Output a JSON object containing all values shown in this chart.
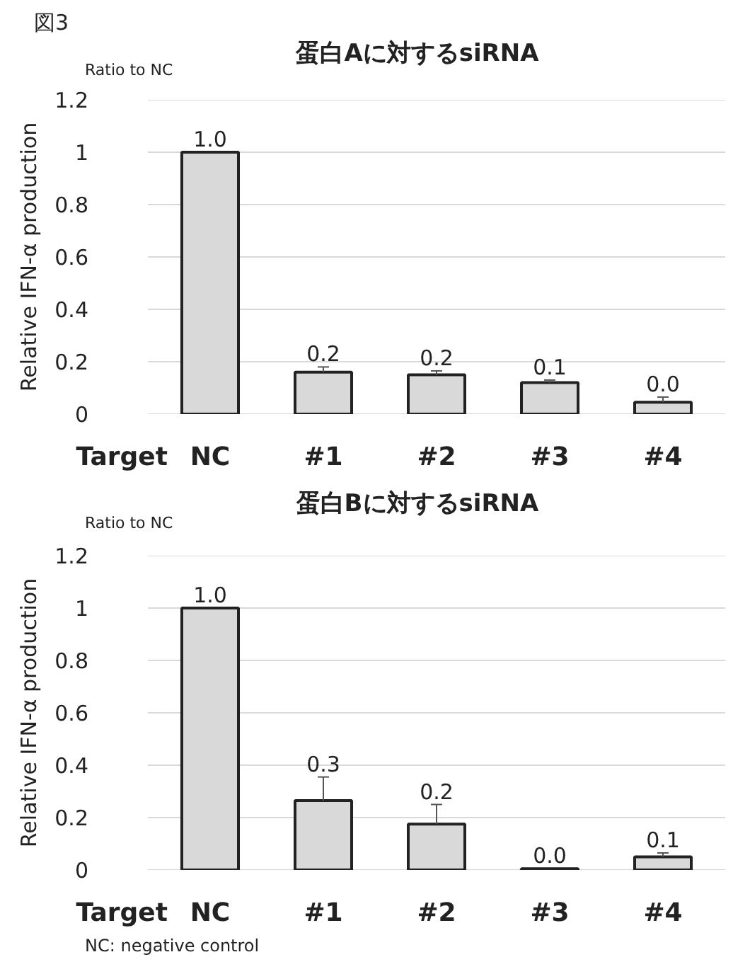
{
  "chart_data": [
    {
      "type": "bar",
      "title": "蛋白Aに対するsiRNA",
      "ylabel": "Relative IFN-α production",
      "xlabel": "Target",
      "annotations": [
        "図3",
        "Ratio to NC"
      ],
      "categories": [
        "NC",
        "#1",
        "#2",
        "#3",
        "#4"
      ],
      "values": [
        1.0,
        0.16,
        0.15,
        0.12,
        0.045
      ],
      "errors": [
        null,
        [
          0.16,
          0.18
        ],
        [
          0.15,
          0.165
        ],
        [
          0.12,
          0.13
        ],
        [
          0.045,
          0.065
        ]
      ],
      "value_labels": [
        "1.0",
        "0.2",
        "0.2",
        "0.1",
        "0.0"
      ],
      "color": "#d9d9d9",
      "ylim": [
        0,
        1.2
      ],
      "yticks": [
        0,
        0.2,
        0.4,
        0.6,
        0.8,
        1,
        1.2
      ],
      "grid": "y"
    },
    {
      "type": "bar",
      "title": "蛋白Bに対するsiRNA",
      "ylabel": "Relative IFN-α production",
      "xlabel": "Target",
      "annotations": [
        "Ratio to NC",
        "NC: negative control"
      ],
      "categories": [
        "NC",
        "#1",
        "#2",
        "#3",
        "#4"
      ],
      "values": [
        1.0,
        0.265,
        0.175,
        0.005,
        0.05
      ],
      "errors": [
        null,
        [
          0.265,
          0.355
        ],
        [
          0.175,
          0.25
        ],
        null,
        [
          0.05,
          0.065
        ]
      ],
      "value_labels": [
        "1.0",
        "0.3",
        "0.2",
        "0.0",
        "0.1"
      ],
      "color": "#d9d9d9",
      "ylim": [
        0,
        1.2
      ],
      "yticks": [
        0,
        0.2,
        0.4,
        0.6,
        0.8,
        1,
        1.2
      ],
      "grid": "y"
    }
  ]
}
